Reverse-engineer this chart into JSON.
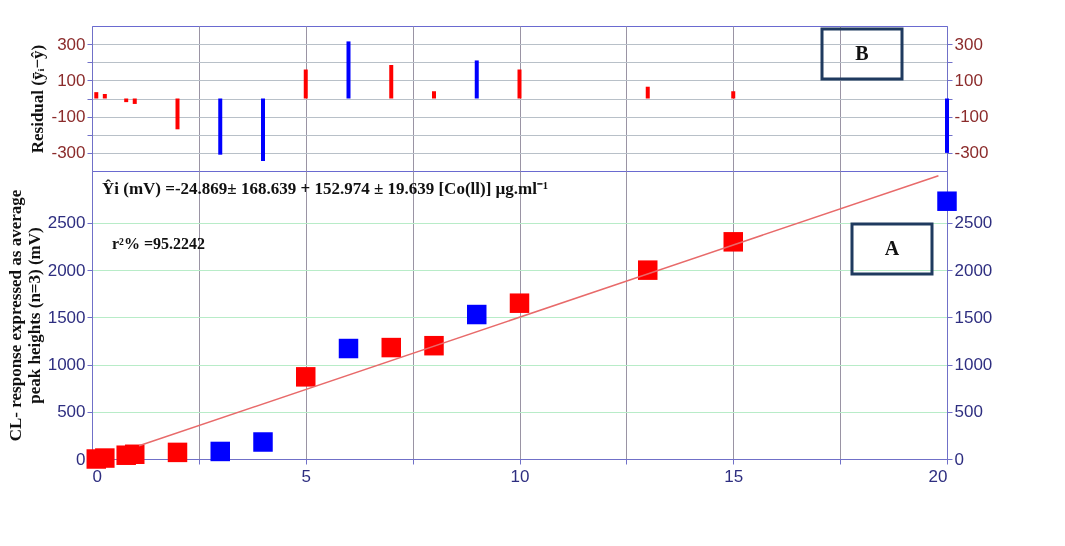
{
  "chart_data": [
    {
      "type": "bar",
      "ylabel": "Residual (ȳᵢ−ŷ)",
      "x": [
        0.1,
        0.3,
        0.8,
        1,
        2,
        3,
        4,
        5,
        6,
        7,
        8,
        9,
        10,
        13,
        15,
        20
      ],
      "values": [
        35,
        25,
        -20,
        -30,
        -170,
        -310,
        -345,
        160,
        315,
        185,
        40,
        210,
        160,
        65,
        40,
        -300
      ],
      "colors": [
        "#ff0000",
        "#ff0000",
        "#ff0000",
        "#ff0000",
        "#ff0000",
        "#0000ff",
        "#0000ff",
        "#ff0000",
        "#0000ff",
        "#ff0000",
        "#ff0000",
        "#0000ff",
        "#ff0000",
        "#ff0000",
        "#ff0000",
        "#0000ff"
      ],
      "xlim": [
        0,
        20
      ],
      "xticks": [
        {
          "value": 2.5,
          "label": null
        },
        {
          "value": 5,
          "label": null
        },
        {
          "value": 7.5,
          "label": null
        },
        {
          "value": 10,
          "label": null
        },
        {
          "value": 12.5,
          "label": null
        },
        {
          "value": 15,
          "label": null
        },
        {
          "value": 17.5,
          "label": null
        }
      ],
      "ylim": [
        -400,
        400
      ],
      "yticks": [
        -300,
        {
          "value": -200,
          "label": null
        },
        -100,
        {
          "value": 0,
          "label": null
        },
        100,
        {
          "value": 200,
          "label": null
        },
        300
      ],
      "y2lim": [
        -400,
        400
      ],
      "y2ticks": [
        -300,
        {
          "value": -200,
          "label": null
        },
        -100,
        {
          "value": 0,
          "label": null
        },
        100,
        {
          "value": 200,
          "label": null
        },
        300
      ],
      "grid": true,
      "tick_labels": "y",
      "annotations": [
        "B"
      ]
    },
    {
      "type": "scatter",
      "ylabel": "CL- response expressed as average\npeak heights (n=3) (mV)",
      "series": [
        {
          "type": "scatter",
          "x": [
            0.1,
            0.3,
            0.8,
            1,
            2,
            3,
            4,
            5,
            6,
            7,
            8,
            9,
            10,
            13,
            15,
            20
          ],
          "marker": "square",
          "values": [
            0,
            10,
            40,
            50,
            70,
            80,
            180,
            870,
            1170,
            1180,
            1200,
            1530,
            1650,
            2000,
            2300,
            2730
          ],
          "colors": [
            "#ff0000",
            "#ff0000",
            "#ff0000",
            "#ff0000",
            "#ff0000",
            "#0000ff",
            "#0000ff",
            "#ff0000",
            "#0000ff",
            "#ff0000",
            "#ff0000",
            "#0000ff",
            "#ff0000",
            "#ff0000",
            "#ff0000",
            "#0000ff"
          ]
        },
        {
          "type": "line",
          "x": [
            1.1,
            19.8
          ],
          "values": [
            140,
            3000
          ],
          "color": "#e86a6a",
          "marker": "none"
        }
      ],
      "xlim": [
        0,
        20
      ],
      "xticks": [
        0,
        {
          "value": 2.5,
          "label": null
        },
        5,
        {
          "value": 7.5,
          "label": null
        },
        10,
        {
          "value": 12.5,
          "label": null
        },
        15,
        {
          "value": 17.5,
          "label": null
        },
        20
      ],
      "ylim": [
        0,
        3050
      ],
      "yticks": [
        0,
        500,
        1000,
        1500,
        2000,
        2500
      ],
      "y2lim": [
        0,
        3050
      ],
      "y2ticks": [
        0,
        500,
        1000,
        1500,
        2000,
        2500
      ],
      "grid": true,
      "annotations": [
        "Ŷi (mV) =-24.869± 168.639 + 152.974 ± 19.639 [Co(ll)] µg.ml⁻¹",
        "r²% =95.2242",
        "A"
      ]
    }
  ]
}
